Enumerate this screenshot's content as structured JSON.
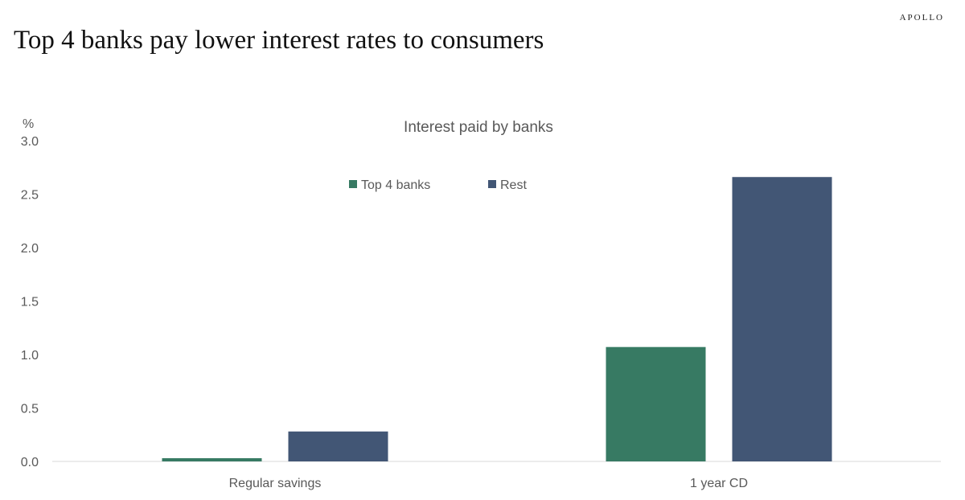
{
  "header": {
    "brand": "APOLLO",
    "title": "Top 4 banks pay lower interest rates to consumers"
  },
  "colors": {
    "top4": "#377a63",
    "rest": "#425675",
    "axis_text": "#595959",
    "axis_line": "#d9d9d9"
  },
  "chart_data": {
    "type": "bar",
    "title": "Interest paid by banks",
    "ylabel": "%",
    "xlabel": "",
    "categories": [
      "Regular savings",
      "1 year CD"
    ],
    "series": [
      {
        "name": "Top 4 banks",
        "values": [
          0.03,
          1.07
        ]
      },
      {
        "name": "Rest",
        "values": [
          0.28,
          2.66
        ]
      }
    ],
    "ylim": [
      0,
      3.0
    ],
    "yticks": [
      "0.0",
      "0.5",
      "1.0",
      "1.5",
      "2.0",
      "2.5",
      "3.0"
    ],
    "grid": false,
    "legend_position": "top-center"
  }
}
